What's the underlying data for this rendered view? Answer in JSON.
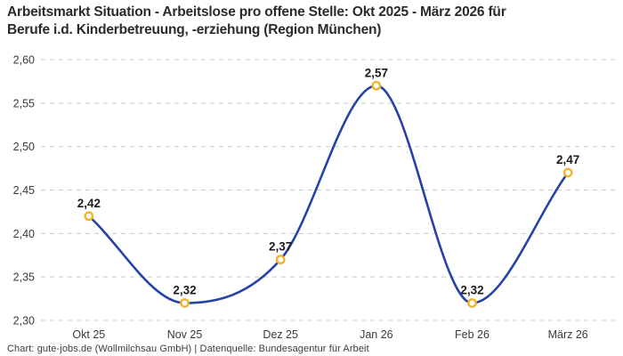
{
  "title": {
    "line1": "Arbeitsmarkt Situation - Arbeitslose pro offene Stelle: Okt 2025 - März 2026 für",
    "line2": "Berufe i.d. Kinderbetreuung, -erziehung (Region München)"
  },
  "footer": "Chart: gute-jobs.de (Wollmilchsau GmbH) | Datenquelle: Bundesagentur für Arbeit",
  "colors": {
    "line": "#2742a6",
    "marker_ring": "#f2b32c",
    "marker_fill": "#ffffff",
    "grid": "#c9c9c9",
    "title_text": "#2b2b2b",
    "data_label": "#1c1c1c",
    "tick_label": "#3a3a3a",
    "background": "#ffffff"
  },
  "chart_data": {
    "type": "line",
    "title": "Arbeitsmarkt Situation - Arbeitslose pro offene Stelle: Okt 2025 - März 2026 für Berufe i.d. Kinderbetreuung, -erziehung (Region München)",
    "categories": [
      "Okt 25",
      "Nov 25",
      "Dez 25",
      "Jan 26",
      "Feb 26",
      "März 26"
    ],
    "values": [
      2.42,
      2.32,
      2.37,
      2.57,
      2.32,
      2.47
    ],
    "value_labels": [
      "2,42",
      "2,32",
      "2,37",
      "2,57",
      "2,32",
      "2,47"
    ],
    "xlabel": "",
    "ylabel": "",
    "ylim": [
      2.3,
      2.6
    ],
    "y_ticks": [
      {
        "value": 2.6,
        "label": "2,60"
      },
      {
        "value": 2.55,
        "label": "2,55"
      },
      {
        "value": 2.5,
        "label": "2,50"
      },
      {
        "value": 2.45,
        "label": "2,45"
      },
      {
        "value": 2.4,
        "label": "2,40"
      },
      {
        "value": 2.35,
        "label": "2,35"
      },
      {
        "value": 2.3,
        "label": "2,30"
      }
    ],
    "grid": "horizontal-dashed",
    "legend": "none",
    "curve": "smooth-monotone",
    "marker": "open-circle"
  }
}
